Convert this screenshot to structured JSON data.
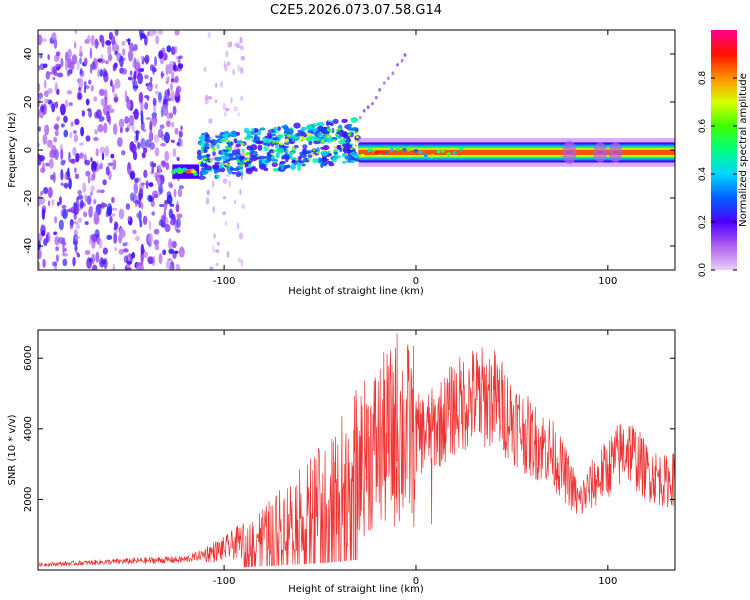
{
  "title": "C2E5.2026.073.07.58.G14",
  "colors": {
    "snr_line": "#ee3333",
    "axis": "#000000"
  },
  "chart_data": [
    {
      "type": "heatmap",
      "name": "spectrogram",
      "xlabel": "Height of straight line (km)",
      "ylabel": "Frequency (Hz)",
      "xlim": [
        -197,
        135
      ],
      "ylim": [
        -50,
        50
      ],
      "xticks": [
        -100,
        0,
        100
      ],
      "yticks": [
        -40,
        -20,
        0,
        20,
        40
      ],
      "colorbar": {
        "label": "Normalized spectral amplitude",
        "range": [
          0.0,
          1.0
        ],
        "ticks": [
          0.0,
          0.2,
          0.4,
          0.6,
          0.8
        ],
        "tick_labels": [
          "0.0",
          "0.2",
          "0.4",
          "0.6",
          "0.8"
        ]
      },
      "regions": [
        {
          "name": "noise",
          "x": [
            -197,
            -122
          ],
          "freq": [
            -50,
            50
          ],
          "amplitude": 0.1
        },
        {
          "name": "scatter",
          "x": [
            -110,
            -90
          ],
          "freq": [
            -50,
            50
          ],
          "amplitude": 0.05
        },
        {
          "name": "onset",
          "x": [
            -127,
            -113
          ],
          "freq_center": -9,
          "amplitude": 0.85
        },
        {
          "name": "turbulent_head",
          "x": [
            -113,
            -30
          ],
          "freq_center": 0,
          "amplitude": 0.35
        },
        {
          "name": "trail",
          "x": [
            -30,
            135
          ],
          "freq_center": -1,
          "amplitude": 0.9
        }
      ]
    },
    {
      "type": "line",
      "name": "snr",
      "xlabel": "Height of straight line (km)",
      "ylabel": "SNR (10 * v/v)",
      "xlim": [
        -197,
        135
      ],
      "ylim": [
        0,
        6800
      ],
      "xticks": [
        -100,
        0,
        100
      ],
      "yticks": [
        2000,
        4000,
        6000
      ],
      "envelope": [
        {
          "x": -197,
          "y": 150
        },
        {
          "x": -150,
          "y": 250
        },
        {
          "x": -120,
          "y": 300
        },
        {
          "x": -100,
          "y": 600
        },
        {
          "x": -80,
          "y": 1100
        },
        {
          "x": -60,
          "y": 1700
        },
        {
          "x": -45,
          "y": 2200
        },
        {
          "x": -35,
          "y": 2700
        },
        {
          "x": -25,
          "y": 3300
        },
        {
          "x": -15,
          "y": 3700
        },
        {
          "x": -8,
          "y": 3900
        },
        {
          "x": 0,
          "y": 3800
        },
        {
          "x": 10,
          "y": 4000
        },
        {
          "x": 20,
          "y": 4600
        },
        {
          "x": 30,
          "y": 4900
        },
        {
          "x": 40,
          "y": 4900
        },
        {
          "x": 50,
          "y": 4300
        },
        {
          "x": 60,
          "y": 3700
        },
        {
          "x": 70,
          "y": 3400
        },
        {
          "x": 80,
          "y": 2500
        },
        {
          "x": 85,
          "y": 1900
        },
        {
          "x": 90,
          "y": 2300
        },
        {
          "x": 100,
          "y": 2900
        },
        {
          "x": 110,
          "y": 3500
        },
        {
          "x": 120,
          "y": 2800
        },
        {
          "x": 130,
          "y": 2500
        },
        {
          "x": 135,
          "y": 2600
        }
      ],
      "spikes": [
        {
          "x": -10,
          "y": 6700
        },
        {
          "x": -12,
          "y": 5600
        },
        {
          "x": -26,
          "y": 4700
        },
        {
          "x": 15,
          "y": 5300
        },
        {
          "x": 33,
          "y": 5800
        },
        {
          "x": 8,
          "y": 1300
        }
      ]
    }
  ]
}
